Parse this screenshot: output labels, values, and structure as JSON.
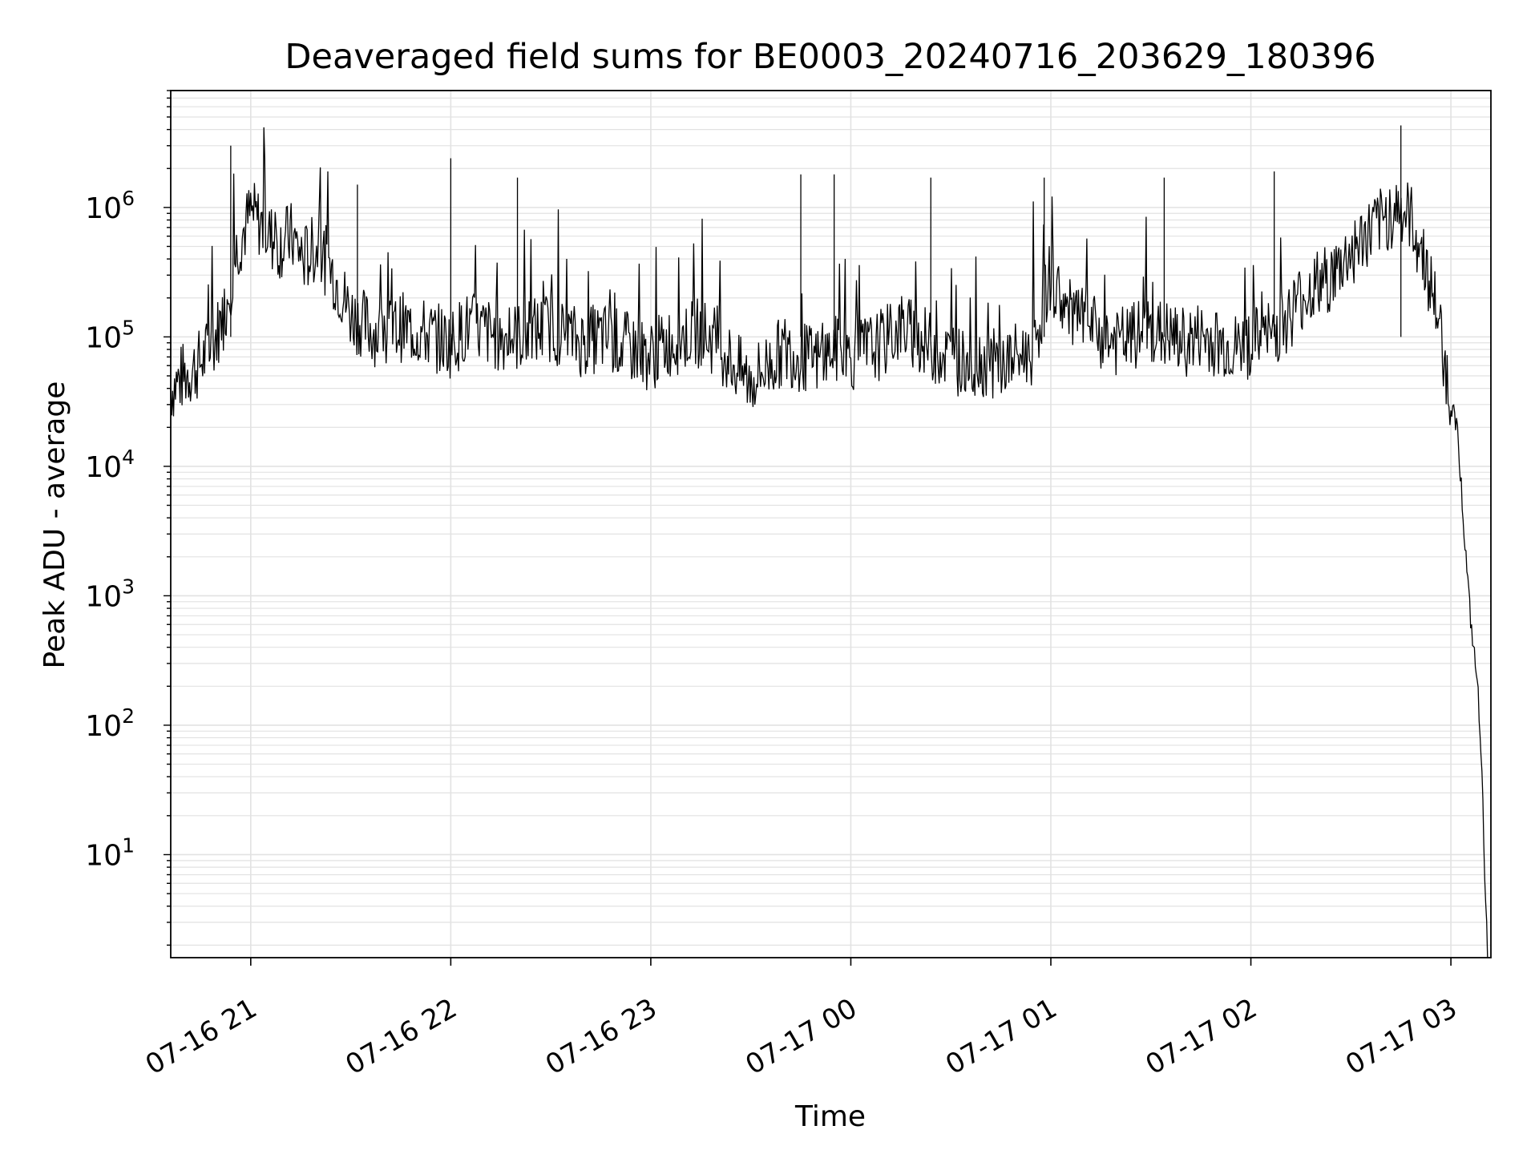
{
  "chart_data": {
    "type": "line",
    "title": "Deaveraged field sums for BE0003_20240716_203629_180396",
    "xlabel": "Time",
    "ylabel": "Peak ADU - average",
    "yscale": "log",
    "ylim": [
      1.6,
      8000000
    ],
    "xlim": [
      "2024-07-16 20:36:29",
      "2024-07-17 03:12:30"
    ],
    "grid": true,
    "x_ticks": [
      {
        "t": "2024-07-16 21:00",
        "label": "07-16 21"
      },
      {
        "t": "2024-07-16 22:00",
        "label": "07-16 22"
      },
      {
        "t": "2024-07-16 23:00",
        "label": "07-16 23"
      },
      {
        "t": "2024-07-17 00:00",
        "label": "07-17 00"
      },
      {
        "t": "2024-07-17 01:00",
        "label": "07-17 01"
      },
      {
        "t": "2024-07-17 02:00",
        "label": "07-17 02"
      },
      {
        "t": "2024-07-17 03:00",
        "label": "07-17 03"
      }
    ],
    "y_ticks": [
      {
        "v": 10,
        "base": "10",
        "exp": "1"
      },
      {
        "v": 100,
        "base": "10",
        "exp": "2"
      },
      {
        "v": 1000,
        "base": "10",
        "exp": "3"
      },
      {
        "v": 10000,
        "base": "10",
        "exp": "4"
      },
      {
        "v": 100000,
        "base": "10",
        "exp": "5"
      },
      {
        "v": 1000000,
        "base": "10",
        "exp": "6"
      }
    ],
    "series": [
      {
        "color": "#000000",
        "x": [
          "2024-07-16 20:36",
          "2024-07-16 20:40",
          "2024-07-16 20:44",
          "2024-07-16 20:48",
          "2024-07-16 20:52",
          "2024-07-16 20:56",
          "2024-07-16 21:00",
          "2024-07-16 21:04",
          "2024-07-16 21:08",
          "2024-07-16 21:12",
          "2024-07-16 21:16",
          "2024-07-16 21:20",
          "2024-07-16 21:25",
          "2024-07-16 21:30",
          "2024-07-16 21:35",
          "2024-07-16 21:40",
          "2024-07-16 21:45",
          "2024-07-16 21:50",
          "2024-07-16 21:55",
          "2024-07-16 22:00",
          "2024-07-16 22:05",
          "2024-07-16 22:10",
          "2024-07-16 22:15",
          "2024-07-16 22:20",
          "2024-07-16 22:25",
          "2024-07-16 22:30",
          "2024-07-16 22:35",
          "2024-07-16 22:40",
          "2024-07-16 22:45",
          "2024-07-16 22:50",
          "2024-07-16 22:55",
          "2024-07-16 23:00",
          "2024-07-16 23:05",
          "2024-07-16 23:10",
          "2024-07-16 23:15",
          "2024-07-16 23:20",
          "2024-07-16 23:25",
          "2024-07-16 23:30",
          "2024-07-16 23:35",
          "2024-07-16 23:40",
          "2024-07-16 23:45",
          "2024-07-16 23:50",
          "2024-07-16 23:55",
          "2024-07-17 00:00",
          "2024-07-17 00:05",
          "2024-07-17 00:10",
          "2024-07-17 00:15",
          "2024-07-17 00:20",
          "2024-07-17 00:25",
          "2024-07-17 00:30",
          "2024-07-17 00:35",
          "2024-07-17 00:40",
          "2024-07-17 00:45",
          "2024-07-17 00:50",
          "2024-07-17 00:55",
          "2024-07-17 00:58",
          "2024-07-17 01:00",
          "2024-07-17 01:05",
          "2024-07-17 01:10",
          "2024-07-17 01:15",
          "2024-07-17 01:20",
          "2024-07-17 01:25",
          "2024-07-17 01:30",
          "2024-07-17 01:35",
          "2024-07-17 01:40",
          "2024-07-17 01:45",
          "2024-07-17 01:50",
          "2024-07-17 01:55",
          "2024-07-17 02:00",
          "2024-07-17 02:05",
          "2024-07-17 02:10",
          "2024-07-17 02:15",
          "2024-07-17 02:20",
          "2024-07-17 02:25",
          "2024-07-17 02:30",
          "2024-07-17 02:35",
          "2024-07-17 02:40",
          "2024-07-17 02:44",
          "2024-07-17 02:48",
          "2024-07-17 02:52",
          "2024-07-17 02:56",
          "2024-07-17 03:00",
          "2024-07-17 03:02",
          "2024-07-17 03:04",
          "2024-07-17 03:06",
          "2024-07-17 03:08",
          "2024-07-17 03:09",
          "2024-07-17 03:10",
          "2024-07-17 03:11"
        ],
        "y": [
          40000,
          50000,
          60000,
          80000,
          150000,
          500000,
          900000,
          700000,
          500000,
          600000,
          400000,
          500000,
          300000,
          150000,
          120000,
          100000,
          120000,
          110000,
          100000,
          90000,
          120000,
          110000,
          100000,
          100000,
          110000,
          120000,
          100000,
          90000,
          100000,
          90000,
          80000,
          70000,
          90000,
          100000,
          110000,
          90000,
          60000,
          45000,
          60000,
          80000,
          70000,
          65000,
          80000,
          70000,
          80000,
          90000,
          120000,
          100000,
          80000,
          70000,
          60000,
          65000,
          60000,
          70000,
          80000,
          200000,
          300000,
          150000,
          130000,
          100000,
          90000,
          100000,
          110000,
          100000,
          90000,
          100000,
          90000,
          80000,
          90000,
          100000,
          130000,
          200000,
          250000,
          300000,
          450000,
          600000,
          800000,
          1000000,
          800000,
          400000,
          150000,
          30000,
          20000,
          3000,
          600,
          200,
          70,
          10,
          1.6
        ]
      }
    ],
    "spikes": [
      {
        "t": "2024-07-16 20:54",
        "v": 3000000
      },
      {
        "t": "2024-07-16 21:32",
        "v": 1500000
      },
      {
        "t": "2024-07-16 22:00",
        "v": 2400000
      },
      {
        "t": "2024-07-16 22:20",
        "v": 1700000
      },
      {
        "t": "2024-07-16 23:45",
        "v": 1800000
      },
      {
        "t": "2024-07-16 23:55",
        "v": 1800000
      },
      {
        "t": "2024-07-17 00:24",
        "v": 1700000
      },
      {
        "t": "2024-07-17 00:58",
        "v": 1700000
      },
      {
        "t": "2024-07-17 01:34",
        "v": 1700000
      },
      {
        "t": "2024-07-17 02:07",
        "v": 1900000
      },
      {
        "t": "2024-07-17 02:45",
        "v": 4300000
      }
    ]
  }
}
